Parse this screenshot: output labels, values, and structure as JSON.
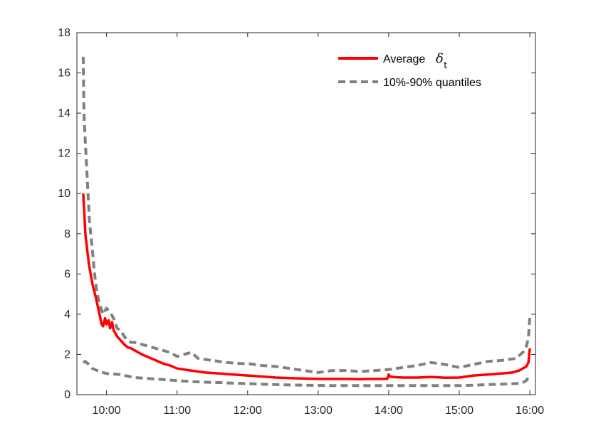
{
  "chart_data": {
    "type": "line",
    "title": "",
    "xlabel": "",
    "ylabel": "",
    "xlim": [
      9.58,
      16.08
    ],
    "ylim": [
      0,
      18
    ],
    "x_ticks": [
      {
        "value": 10,
        "label": "10:00"
      },
      {
        "value": 11,
        "label": "11:00"
      },
      {
        "value": 12,
        "label": "12:00"
      },
      {
        "value": 13,
        "label": "13:00"
      },
      {
        "value": 14,
        "label": "14:00"
      },
      {
        "value": 15,
        "label": "15:00"
      },
      {
        "value": 16,
        "label": "16:00"
      }
    ],
    "y_ticks": [
      0,
      2,
      4,
      6,
      8,
      10,
      12,
      14,
      16,
      18
    ],
    "y_tick_labels": [
      "0",
      "2",
      "4",
      "6",
      "8",
      "10",
      "12",
      "14",
      "16",
      "18"
    ],
    "grid": false,
    "legend_placement": "top-right",
    "legend": {
      "average_label": "Average",
      "average_symbol": "δ",
      "average_subscript": "t",
      "quantile_label": "10%-90% quantiles"
    },
    "series": [
      {
        "key": "average",
        "color": "#ff0000",
        "style": "solid",
        "x": [
          9.67,
          9.7,
          9.75,
          9.8,
          9.85,
          9.9,
          9.93,
          9.95,
          9.98,
          10.0,
          10.03,
          10.05,
          10.08,
          10.1,
          10.15,
          10.2,
          10.25,
          10.3,
          10.35,
          10.4,
          10.5,
          10.6,
          10.7,
          10.8,
          10.9,
          11.0,
          11.2,
          11.4,
          11.6,
          11.8,
          12.0,
          12.2,
          12.4,
          12.6,
          12.8,
          13.0,
          13.2,
          13.4,
          13.6,
          13.8,
          13.98,
          14.0,
          14.02,
          14.05,
          14.2,
          14.4,
          14.6,
          14.8,
          15.0,
          15.1,
          15.2,
          15.4,
          15.6,
          15.75,
          15.85,
          15.9,
          15.95,
          15.98,
          16.0
        ],
        "y": [
          10.0,
          8.0,
          6.5,
          5.5,
          4.8,
          4.0,
          3.5,
          3.4,
          3.8,
          3.5,
          3.7,
          3.3,
          3.6,
          3.2,
          2.9,
          2.7,
          2.5,
          2.35,
          2.3,
          2.2,
          2.0,
          1.85,
          1.7,
          1.55,
          1.45,
          1.3,
          1.2,
          1.1,
          1.05,
          1.0,
          0.95,
          0.9,
          0.85,
          0.82,
          0.8,
          0.78,
          0.78,
          0.78,
          0.77,
          0.78,
          0.78,
          1.0,
          0.9,
          0.88,
          0.85,
          0.85,
          0.88,
          0.84,
          0.85,
          0.9,
          0.95,
          1.0,
          1.05,
          1.1,
          1.2,
          1.3,
          1.4,
          1.6,
          2.3
        ]
      },
      {
        "key": "q90",
        "color": "#808080",
        "style": "dashed",
        "x": [
          9.67,
          9.68,
          9.7,
          9.73,
          9.76,
          9.8,
          9.83,
          9.86,
          9.9,
          9.95,
          10.0,
          10.05,
          10.1,
          10.15,
          10.2,
          10.25,
          10.3,
          10.35,
          10.4,
          10.5,
          10.6,
          10.7,
          10.8,
          10.9,
          11.0,
          11.1,
          11.2,
          11.3,
          11.5,
          11.7,
          11.9,
          12.0,
          12.2,
          12.4,
          12.6,
          12.8,
          13.0,
          13.2,
          13.4,
          13.6,
          13.8,
          14.0,
          14.2,
          14.4,
          14.6,
          14.8,
          15.0,
          15.2,
          15.4,
          15.6,
          15.8,
          15.9,
          15.95,
          15.98,
          16.0
        ],
        "y": [
          16.8,
          14.0,
          12.5,
          10.5,
          8.5,
          7.2,
          6.0,
          5.2,
          4.5,
          4.0,
          4.3,
          4.1,
          3.8,
          3.3,
          3.2,
          2.9,
          2.7,
          2.6,
          2.6,
          2.5,
          2.4,
          2.3,
          2.2,
          2.1,
          1.9,
          2.0,
          2.1,
          1.8,
          1.7,
          1.6,
          1.55,
          1.55,
          1.45,
          1.4,
          1.3,
          1.2,
          1.1,
          1.2,
          1.2,
          1.15,
          1.2,
          1.25,
          1.35,
          1.45,
          1.6,
          1.5,
          1.35,
          1.5,
          1.65,
          1.7,
          1.8,
          2.1,
          2.4,
          2.8,
          3.9
        ]
      },
      {
        "key": "q10",
        "color": "#808080",
        "style": "dashed",
        "x": [
          9.67,
          9.7,
          9.75,
          9.8,
          9.9,
          10.0,
          10.2,
          10.4,
          10.6,
          10.8,
          11.0,
          11.2,
          11.4,
          11.6,
          11.8,
          12.0,
          12.2,
          12.4,
          12.6,
          12.8,
          13.0,
          13.2,
          13.4,
          13.6,
          13.8,
          14.0,
          14.2,
          14.4,
          14.6,
          14.8,
          15.0,
          15.2,
          15.4,
          15.6,
          15.8,
          15.9,
          15.95,
          16.0
        ],
        "y": [
          1.6,
          1.65,
          1.5,
          1.3,
          1.15,
          1.05,
          1.0,
          0.85,
          0.8,
          0.75,
          0.7,
          0.65,
          0.62,
          0.6,
          0.57,
          0.55,
          0.52,
          0.5,
          0.48,
          0.47,
          0.46,
          0.45,
          0.45,
          0.45,
          0.45,
          0.45,
          0.45,
          0.45,
          0.45,
          0.45,
          0.45,
          0.47,
          0.5,
          0.52,
          0.55,
          0.6,
          0.7,
          0.95
        ]
      }
    ]
  }
}
